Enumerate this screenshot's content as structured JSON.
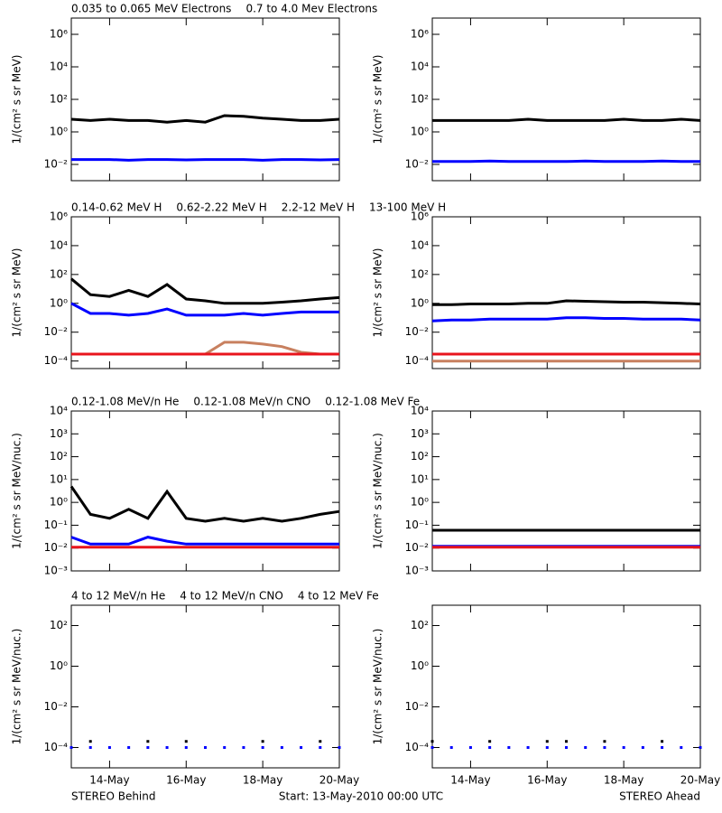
{
  "chart_data": [
    {
      "type": "line",
      "ylog": true,
      "xlim": [
        0,
        7
      ],
      "xticks": [
        1,
        3,
        5,
        7
      ],
      "ylim": [
        0.001,
        10000000
      ],
      "yticks": [
        {
          "value": 1000000,
          "label": "10⁶"
        },
        {
          "value": 10000,
          "label": "10⁴"
        },
        {
          "value": 100,
          "label": "10²"
        },
        {
          "value": 1,
          "label": "10⁰"
        },
        {
          "value": 0.01,
          "label": "10⁻²"
        }
      ],
      "ylabel": "1/(cm² s sr MeV)",
      "x": [
        0,
        0.5,
        1,
        1.5,
        2,
        2.5,
        3,
        3.5,
        4,
        4.5,
        5,
        5.5,
        6,
        6.5,
        7
      ],
      "series": [
        {
          "name": "0.035 to 0.065 MeV Electrons",
          "color": "#000000",
          "values": [
            6,
            5,
            6,
            5,
            5,
            4,
            5,
            4,
            10,
            9,
            7,
            6,
            5,
            5,
            6
          ]
        },
        {
          "name": "0.7 to 4.0 Mev Electrons",
          "color": "#0000ff",
          "values": [
            0.02,
            0.02,
            0.02,
            0.018,
            0.02,
            0.02,
            0.019,
            0.02,
            0.02,
            0.02,
            0.018,
            0.02,
            0.02,
            0.019,
            0.02
          ]
        }
      ]
    },
    {
      "type": "line",
      "ylog": true,
      "xlim": [
        0,
        7
      ],
      "xticks": [
        1,
        3,
        5,
        7
      ],
      "ylim": [
        0.001,
        10000000
      ],
      "yticks": [
        {
          "value": 1000000,
          "label": "10⁶"
        },
        {
          "value": 10000,
          "label": "10⁴"
        },
        {
          "value": 100,
          "label": "10²"
        },
        {
          "value": 1,
          "label": "10⁰"
        },
        {
          "value": 0.01,
          "label": "10⁻²"
        }
      ],
      "ylabel": "1/(cm² s sr MeV)",
      "x": [
        0,
        0.5,
        1,
        1.5,
        2,
        2.5,
        3,
        3.5,
        4,
        4.5,
        5,
        5.5,
        6,
        6.5,
        7
      ],
      "series": [
        {
          "color": "#000000",
          "values": [
            5,
            5,
            5,
            5,
            5,
            6,
            5,
            5,
            5,
            5,
            6,
            5,
            5,
            6,
            5
          ]
        },
        {
          "color": "#0000ff",
          "values": [
            0.015,
            0.015,
            0.015,
            0.016,
            0.015,
            0.015,
            0.015,
            0.015,
            0.016,
            0.015,
            0.015,
            0.015,
            0.016,
            0.015,
            0.015
          ]
        }
      ]
    },
    {
      "type": "line",
      "ylog": true,
      "xlim": [
        0,
        7
      ],
      "xticks": [
        1,
        3,
        5,
        7
      ],
      "ylim": [
        3e-05,
        1000000
      ],
      "yticks": [
        {
          "value": 1000000,
          "label": "10⁶"
        },
        {
          "value": 10000,
          "label": "10⁴"
        },
        {
          "value": 100,
          "label": "10²"
        },
        {
          "value": 1,
          "label": "10⁰"
        },
        {
          "value": 0.01,
          "label": "10⁻²"
        },
        {
          "value": 0.0001,
          "label": "10⁻⁴"
        }
      ],
      "ylabel": "1/(cm² s sr MeV)",
      "x": [
        0,
        0.5,
        1,
        1.5,
        2,
        2.5,
        3,
        3.5,
        4,
        4.5,
        5,
        5.5,
        6,
        6.5,
        7
      ],
      "series": [
        {
          "name": "0.14-0.62 MeV H",
          "color": "#000000",
          "values": [
            50,
            4,
            3,
            8,
            3,
            20,
            2,
            1.5,
            1,
            1,
            1,
            1.2,
            1.5,
            2,
            2.5
          ]
        },
        {
          "name": "0.62-2.22 MeV H",
          "color": "#0000ff",
          "values": [
            1,
            0.2,
            0.2,
            0.15,
            0.2,
            0.4,
            0.15,
            0.15,
            0.15,
            0.2,
            0.15,
            0.2,
            0.25,
            0.25,
            0.25
          ]
        },
        {
          "name": "2.2-12 MeV H",
          "color": "#c8805f",
          "values": [
            0.0003,
            0.0003,
            0.0003,
            0.0003,
            0.0003,
            0.0003,
            0.0003,
            0.0003,
            0.002,
            0.002,
            0.0015,
            0.001,
            0.0004,
            0.0003,
            0.0003
          ]
        },
        {
          "name": "13-100 MeV H",
          "color": "#e8141c",
          "values": [
            0.0003,
            0.0003,
            0.0003,
            0.0003,
            0.0003,
            0.0003,
            0.0003,
            0.0003,
            0.0003,
            0.0003,
            0.0003,
            0.0003,
            0.0003,
            0.0003,
            0.0003
          ]
        }
      ]
    },
    {
      "type": "line",
      "ylog": true,
      "xlim": [
        0,
        7
      ],
      "xticks": [
        1,
        3,
        5,
        7
      ],
      "ylim": [
        3e-05,
        1000000
      ],
      "yticks": [
        {
          "value": 1000000,
          "label": "10⁶"
        },
        {
          "value": 10000,
          "label": "10⁴"
        },
        {
          "value": 100,
          "label": "10²"
        },
        {
          "value": 1,
          "label": "10⁰"
        },
        {
          "value": 0.01,
          "label": "10⁻²"
        },
        {
          "value": 0.0001,
          "label": "10⁻⁴"
        }
      ],
      "ylabel": "1/(cm² s sr MeV)",
      "x": [
        0,
        0.5,
        1,
        1.5,
        2,
        2.5,
        3,
        3.5,
        4,
        4.5,
        5,
        5.5,
        6,
        6.5,
        7
      ],
      "series": [
        {
          "color": "#000000",
          "values": [
            0.8,
            0.8,
            0.9,
            0.9,
            0.9,
            1,
            1,
            1.5,
            1.4,
            1.3,
            1.2,
            1.2,
            1.1,
            1,
            0.9
          ]
        },
        {
          "color": "#0000ff",
          "values": [
            0.06,
            0.07,
            0.07,
            0.08,
            0.08,
            0.08,
            0.08,
            0.1,
            0.1,
            0.09,
            0.09,
            0.08,
            0.08,
            0.08,
            0.07
          ]
        },
        {
          "color": "#c8805f",
          "values": [
            0.0001,
            0.0001,
            0.0001,
            0.0001,
            0.0001,
            0.0001,
            0.0001,
            0.0001,
            0.0001,
            0.0001,
            0.0001,
            0.0001,
            0.0001,
            0.0001,
            0.0001
          ]
        },
        {
          "color": "#e8141c",
          "values": [
            0.0003,
            0.0003,
            0.0003,
            0.0003,
            0.0003,
            0.0003,
            0.0003,
            0.0003,
            0.0003,
            0.0003,
            0.0003,
            0.0003,
            0.0003,
            0.0003,
            0.0003
          ]
        }
      ]
    },
    {
      "type": "line",
      "ylog": true,
      "xlim": [
        0,
        7
      ],
      "xticks": [
        1,
        3,
        5,
        7
      ],
      "ylim": [
        0.001,
        10000
      ],
      "yticks": [
        {
          "value": 10000,
          "label": "10⁴"
        },
        {
          "value": 1000,
          "label": "10³"
        },
        {
          "value": 100,
          "label": "10²"
        },
        {
          "value": 10,
          "label": "10¹"
        },
        {
          "value": 1,
          "label": "10⁰"
        },
        {
          "value": 0.1,
          "label": "10⁻¹"
        },
        {
          "value": 0.01,
          "label": "10⁻²"
        },
        {
          "value": 0.001,
          "label": "10⁻³"
        }
      ],
      "ylabel": "1/(cm² s sr MeV/nuc.)",
      "x": [
        0,
        0.5,
        1,
        1.5,
        2,
        2.5,
        3,
        3.5,
        4,
        4.5,
        5,
        5.5,
        6,
        6.5,
        7
      ],
      "series": [
        {
          "name": "0.12-1.08 MeV/n He",
          "color": "#000000",
          "values": [
            5,
            0.3,
            0.2,
            0.5,
            0.2,
            3,
            0.2,
            0.15,
            0.2,
            0.15,
            0.2,
            0.15,
            0.2,
            0.3,
            0.4
          ]
        },
        {
          "name": "0.12-1.08 MeV/n CNO",
          "color": "#0000ff",
          "values": [
            0.03,
            0.015,
            0.015,
            0.015,
            0.03,
            0.02,
            0.015,
            0.015,
            0.015,
            0.015,
            0.015,
            0.015,
            0.015,
            0.015,
            0.015
          ]
        },
        {
          "name": "0.12-1.08 MeV Fe",
          "color": "#e8141c",
          "values": [
            0.011,
            0.011,
            0.011,
            0.011,
            0.011,
            0.011,
            0.011,
            0.011,
            0.011,
            0.011,
            0.011,
            0.011,
            0.011,
            0.011,
            0.011
          ]
        }
      ]
    },
    {
      "type": "line",
      "ylog": true,
      "xlim": [
        0,
        7
      ],
      "xticks": [
        1,
        3,
        5,
        7
      ],
      "ylim": [
        0.001,
        10000
      ],
      "yticks": [
        {
          "value": 10000,
          "label": "10⁴"
        },
        {
          "value": 1000,
          "label": "10³"
        },
        {
          "value": 100,
          "label": "10²"
        },
        {
          "value": 10,
          "label": "10¹"
        },
        {
          "value": 1,
          "label": "10⁰"
        },
        {
          "value": 0.1,
          "label": "10⁻¹"
        },
        {
          "value": 0.01,
          "label": "10⁻²"
        },
        {
          "value": 0.001,
          "label": "10⁻³"
        }
      ],
      "ylabel": "1/(cm² s sr MeV/nuc.)",
      "x": [
        0,
        0.5,
        1,
        1.5,
        2,
        2.5,
        3,
        3.5,
        4,
        4.5,
        5,
        5.5,
        6,
        6.5,
        7
      ],
      "series": [
        {
          "color": "#000000",
          "values": [
            0.06,
            0.06,
            0.06,
            0.06,
            0.06,
            0.06,
            0.06,
            0.06,
            0.06,
            0.06,
            0.06,
            0.06,
            0.06,
            0.06,
            0.06
          ]
        },
        {
          "color": "#0000ff",
          "values": [
            0.012,
            0.012,
            0.012,
            0.012,
            0.012,
            0.012,
            0.012,
            0.012,
            0.012,
            0.012,
            0.012,
            0.012,
            0.012,
            0.012,
            0.012
          ]
        },
        {
          "color": "#e8141c",
          "values": [
            0.011,
            0.011,
            0.011,
            0.011,
            0.011,
            0.011,
            0.011,
            0.011,
            0.011,
            0.011,
            0.011,
            0.011,
            0.011,
            0.011,
            0.011
          ]
        }
      ]
    },
    {
      "type": "scatter",
      "ylog": true,
      "xlim": [
        0,
        7
      ],
      "xticks": [
        {
          "value": 1,
          "label": "14-May"
        },
        {
          "value": 3,
          "label": "16-May"
        },
        {
          "value": 5,
          "label": "18-May"
        },
        {
          "value": 7,
          "label": "20-May"
        }
      ],
      "ylim": [
        1e-05,
        1000
      ],
      "yticks": [
        {
          "value": 100,
          "label": "10²"
        },
        {
          "value": 1,
          "label": "10⁰"
        },
        {
          "value": 0.01,
          "label": "10⁻²"
        },
        {
          "value": 0.0001,
          "label": "10⁻⁴"
        }
      ],
      "ylabel": "1/(cm² s sr MeV/nuc.)",
      "x": [
        0,
        0.5,
        1,
        1.5,
        2,
        2.5,
        3,
        3.5,
        4,
        4.5,
        5,
        5.5,
        6,
        6.5,
        7
      ],
      "series": [
        {
          "name": "4 to 12 MeV/n He",
          "color": "#000000",
          "values": [
            null,
            0.0002,
            null,
            null,
            0.0002,
            null,
            0.0002,
            null,
            null,
            null,
            0.0002,
            null,
            null,
            0.0002,
            null
          ]
        },
        {
          "name": "4 to 12 MeV/n CNO",
          "color": "#0000ff",
          "values": [
            0.0001,
            0.0001,
            0.0001,
            0.0001,
            0.0001,
            0.0001,
            0.0001,
            0.0001,
            0.0001,
            0.0001,
            0.0001,
            0.0001,
            0.0001,
            0.0001,
            0.0001
          ]
        },
        {
          "name": "4 to 12 MeV Fe",
          "color": "#e8141c",
          "values": [
            null,
            null,
            null,
            null,
            null,
            null,
            null,
            null,
            null,
            null,
            null,
            null,
            null,
            null,
            null
          ]
        }
      ]
    },
    {
      "type": "scatter",
      "ylog": true,
      "xlim": [
        0,
        7
      ],
      "xticks": [
        {
          "value": 1,
          "label": "14-May"
        },
        {
          "value": 3,
          "label": "16-May"
        },
        {
          "value": 5,
          "label": "18-May"
        },
        {
          "value": 7,
          "label": "20-May"
        }
      ],
      "ylim": [
        1e-05,
        1000
      ],
      "yticks": [
        {
          "value": 100,
          "label": "10²"
        },
        {
          "value": 1,
          "label": "10⁰"
        },
        {
          "value": 0.01,
          "label": "10⁻²"
        },
        {
          "value": 0.0001,
          "label": "10⁻⁴"
        }
      ],
      "ylabel": "1/(cm² s sr MeV/nuc.)",
      "x": [
        0,
        0.5,
        1,
        1.5,
        2,
        2.5,
        3,
        3.5,
        4,
        4.5,
        5,
        5.5,
        6,
        6.5,
        7
      ],
      "series": [
        {
          "color": "#000000",
          "values": [
            0.0002,
            null,
            null,
            0.0002,
            null,
            null,
            0.0002,
            0.0002,
            null,
            0.0002,
            null,
            null,
            0.0002,
            null,
            null
          ]
        },
        {
          "color": "#0000ff",
          "values": [
            0.0001,
            0.0001,
            0.0001,
            0.0001,
            0.0001,
            0.0001,
            0.0001,
            0.0001,
            0.0001,
            0.0001,
            0.0001,
            0.0001,
            0.0001,
            0.0001,
            0.0001
          ]
        }
      ]
    }
  ],
  "footer": {
    "left": "STEREO Behind",
    "center": "Start: 13-May-2010 00:00 UTC",
    "right": "STEREO Ahead"
  }
}
